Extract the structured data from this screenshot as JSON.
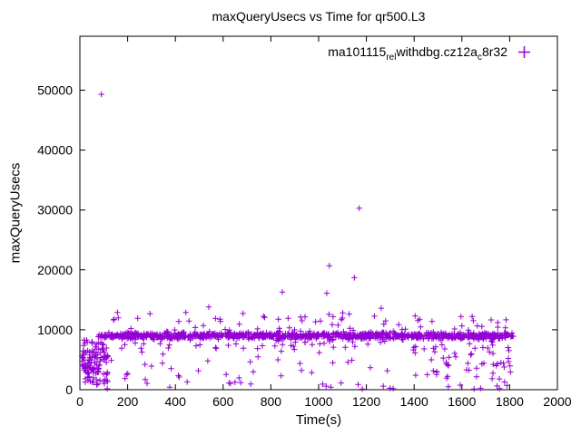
{
  "chart_data": {
    "type": "scatter",
    "title": "maxQueryUsecs vs Time for qr500.L3",
    "xlabel": "Time(s)",
    "ylabel": "maxQueryUsecs",
    "xlim": [
      0,
      2000
    ],
    "ylim": [
      0,
      59000
    ],
    "x_ticks": [
      0,
      200,
      400,
      600,
      800,
      1000,
      1200,
      1400,
      1600,
      1800,
      2000
    ],
    "y_ticks": [
      0,
      10000,
      20000,
      30000,
      40000,
      50000
    ],
    "grid": false,
    "legend_position": "top-right",
    "series": [
      {
        "name": "ma101115relwithdbg.cz12ac8r32",
        "legend_segments": [
          {
            "t": "ma101115",
            "sub": false
          },
          {
            "t": "rel",
            "sub": true
          },
          {
            "t": "w",
            "sub": false
          },
          {
            "t": "ithdbg.cz12a",
            "sub": false
          },
          {
            "t": "c",
            "sub": true
          },
          {
            "t": "8r32",
            "sub": false
          }
        ],
        "marker": "plus",
        "color": "#9400d3",
        "seed": 1234,
        "outliers": [
          [
            90,
            49300
          ],
          [
            1170,
            30300
          ],
          [
            1045,
            20700
          ],
          [
            1150,
            18700
          ],
          [
            848,
            16300
          ],
          [
            1034,
            16100
          ],
          [
            540,
            13800
          ],
          [
            1262,
            13600
          ],
          [
            115,
            150
          ],
          [
            1183,
            100
          ],
          [
            1312,
            200
          ],
          [
            1651,
            120
          ],
          [
            1757,
            180
          ]
        ],
        "clusters": [
          {
            "name": "steady-band",
            "x_min": 70,
            "x_max": 1815,
            "count": 950,
            "dist": "gauss",
            "y_center": 9000,
            "y_spread": 260
          },
          {
            "name": "startup-cluster",
            "x_min": 8,
            "x_max": 118,
            "count": 95,
            "dist": "uniform",
            "y_min": 700,
            "y_max": 8300
          },
          {
            "name": "startup-core",
            "x_min": 15,
            "x_max": 80,
            "count": 30,
            "dist": "uniform",
            "y_min": 2500,
            "y_max": 6800
          },
          {
            "name": "mid-scatter",
            "x_min": 100,
            "x_max": 1810,
            "count": 120,
            "dist": "uniform",
            "y_min": 1500,
            "y_max": 13000
          },
          {
            "name": "below-band",
            "x_min": 150,
            "x_max": 1800,
            "count": 45,
            "dist": "uniform",
            "y_min": 6800,
            "y_max": 8600
          },
          {
            "name": "above-band",
            "x_min": 120,
            "x_max": 1790,
            "count": 35,
            "dist": "uniform",
            "y_min": 9700,
            "y_max": 12400
          },
          {
            "name": "near-zero",
            "x_min": 120,
            "x_max": 1800,
            "count": 22,
            "dist": "uniform",
            "y_min": 100,
            "y_max": 1400
          },
          {
            "name": "tail-cluster",
            "x_min": 1450,
            "x_max": 1780,
            "count": 30,
            "dist": "uniform",
            "y_min": 1500,
            "y_max": 7500
          }
        ]
      }
    ]
  }
}
